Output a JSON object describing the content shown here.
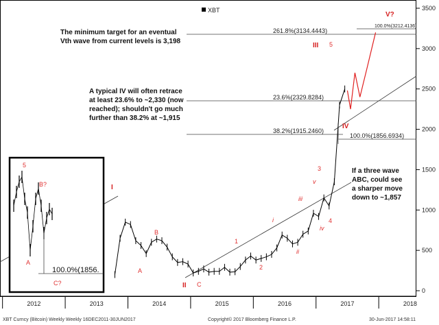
{
  "legend": {
    "label": "XBT",
    "position": "top"
  },
  "annotations": {
    "target_line1": "The minimum target  for  an eventual",
    "target_line2": "Vth wave from current levels is 3,198",
    "iv_line1": "A typical IV will often retrace",
    "iv_line2": "at least 23.6% to ~2,330 (now",
    "iv_line3": "reached); shouldn't go much",
    "iv_line4": "further  than  38.2% at ~1,915",
    "abc_line1": "If  a three wave",
    "abc_line2": "ABC, could see",
    "abc_line3": "a sharper move",
    "abc_line4": "down  to ~1,857"
  },
  "fib_levels": {
    "f2618": "261.8%(3134.4443)",
    "f1000top": "100.0%(3212.4136)",
    "f236": "23.6%(2329.8284)",
    "f382": "38.2%(1915.2460)",
    "f1000": "100.0%(1856.6934)",
    "inset": "100.0%(1856."
  },
  "waves": {
    "I": "I",
    "II": "II",
    "III": "III",
    "IV": "IV",
    "V": "V?",
    "A": "A",
    "B": "B",
    "C": "C",
    "w1": "1",
    "w2": "2",
    "w3": "3",
    "w4": "4",
    "w5": "5",
    "wi": "i",
    "wii": "ii",
    "wiii": "iii",
    "wiv": "iv",
    "wv": "v",
    "inset_5": "5",
    "inset_A": "A",
    "inset_B": "B?",
    "inset_C": "C?"
  },
  "footer": {
    "left": "XBT Curncy (Bitcoin) Weekly  Weekly 16DEC2011-30JUN2017",
    "center": "Copyright© 2017 Bloomberg Finance L.P.",
    "right": "30-Jun-2017  14:58:11"
  },
  "chart_data": {
    "type": "line",
    "series": [
      {
        "name": "XBT",
        "x": [
          "2013-10",
          "2013-11",
          "2013-12",
          "2014-01",
          "2014-02",
          "2014-03",
          "2014-04",
          "2014-05",
          "2014-06",
          "2014-07",
          "2014-08",
          "2014-09",
          "2014-10",
          "2014-11",
          "2014-12",
          "2015-01",
          "2015-02",
          "2015-03",
          "2015-04",
          "2015-05",
          "2015-06",
          "2015-07",
          "2015-08",
          "2015-09",
          "2015-10",
          "2015-11",
          "2015-12",
          "2016-01",
          "2016-02",
          "2016-03",
          "2016-04",
          "2016-05",
          "2016-06",
          "2016-07",
          "2016-08",
          "2016-09",
          "2016-10",
          "2016-11",
          "2016-12",
          "2017-01",
          "2017-02",
          "2017-03",
          "2017-04",
          "2017-05",
          "2017-06"
        ],
        "y": [
          200,
          650,
          850,
          820,
          620,
          560,
          460,
          600,
          640,
          620,
          540,
          420,
          350,
          360,
          330,
          220,
          240,
          270,
          230,
          240,
          240,
          290,
          230,
          235,
          300,
          380,
          430,
          380,
          400,
          420,
          450,
          530,
          690,
          650,
          580,
          600,
          700,
          740,
          960,
          920,
          1150,
          1050,
          1350,
          2300,
          2500
        ]
      }
    ],
    "x_tick_labels": [
      "2012",
      "2013",
      "2014",
      "2015",
      "2016",
      "2017",
      "2018"
    ],
    "y_tick_labels": [
      "0",
      "500",
      "1000",
      "1500",
      "2000",
      "2500",
      "3000",
      "3500"
    ],
    "ylim": [
      0,
      3500
    ],
    "xlim": [
      2011.96,
      2018.6
    ],
    "projection_V": {
      "x": [
        2017.5,
        2017.55,
        2017.62,
        2017.7,
        2017.82,
        2017.95
      ],
      "y": [
        2480,
        2250,
        2700,
        2400,
        2780,
        3200
      ]
    },
    "fib_values": [
      3134.4443,
      3212.4136,
      2329.8284,
      1915.246,
      1856.6934
    ],
    "grid": false
  }
}
